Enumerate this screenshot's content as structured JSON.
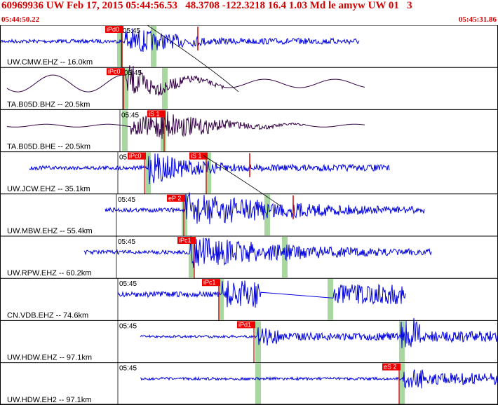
{
  "header": {
    "title": "60969936 UW Feb 17, 2015 05:44:56.53   48.3708 -122.3218 16.4 1.03 Md le amyw UW 01   3",
    "time_start": "05:44:50.22",
    "time_end": "05:45:31.86"
  },
  "colors": {
    "header_text": "#d40000",
    "trace_blue": "#0000dd",
    "trace_purple": "#330044",
    "pick_bg": "#ee0000",
    "pick_line": "#cc0000",
    "window_green": "#a8d8a0",
    "grid": "#000000"
  },
  "traces": [
    {
      "label": "UW.CMW.EHZ -- 16.0km",
      "time_mark": "05:45",
      "color": "blue",
      "picks": [
        {
          "label": "iPd0"
        }
      ],
      "green_bands": 2
    },
    {
      "label": "TA.B05D.BHZ -- 20.5km",
      "time_mark": "05:45",
      "color": "purple",
      "picks": [
        {
          "label": "iPc0"
        }
      ],
      "green_bands": 2
    },
    {
      "label": "TA.B05D.BHE -- 20.5km",
      "time_mark": "05:45",
      "color": "purple",
      "picks": [
        {
          "label": "iS 1"
        }
      ],
      "green_bands": 2
    },
    {
      "label": "UW.JCW.EHZ -- 35.1km",
      "time_mark": "05:45",
      "color": "blue",
      "picks": [
        {
          "label": "iPc0"
        },
        {
          "label": "iS 1"
        }
      ],
      "green_bands": 2
    },
    {
      "label": "UW.MBW.EHZ -- 55.4km",
      "time_mark": "05:45",
      "color": "blue",
      "picks": [
        {
          "label": "eP 2"
        }
      ],
      "green_bands": 2
    },
    {
      "label": "UW.RPW.EHZ -- 60.2km",
      "time_mark": "05:45",
      "color": "blue",
      "picks": [
        {
          "label": "iPc1"
        }
      ],
      "green_bands": 2
    },
    {
      "label": "CN.VDB.EHZ -- 74.6km",
      "time_mark": "05:45",
      "color": "blue",
      "picks": [
        {
          "label": "iPc1"
        }
      ],
      "green_bands": 2
    },
    {
      "label": "UW.HDW.EHZ -- 97.1km",
      "time_mark": "05:45",
      "color": "blue",
      "picks": [
        {
          "label": "iPd1"
        }
      ],
      "green_bands": 2
    },
    {
      "label": "UW.HDW.EH2 -- 97.1km",
      "time_mark": "05:45",
      "color": "blue",
      "picks": [
        {
          "label": "eS 2"
        }
      ],
      "green_bands": 2
    }
  ]
}
